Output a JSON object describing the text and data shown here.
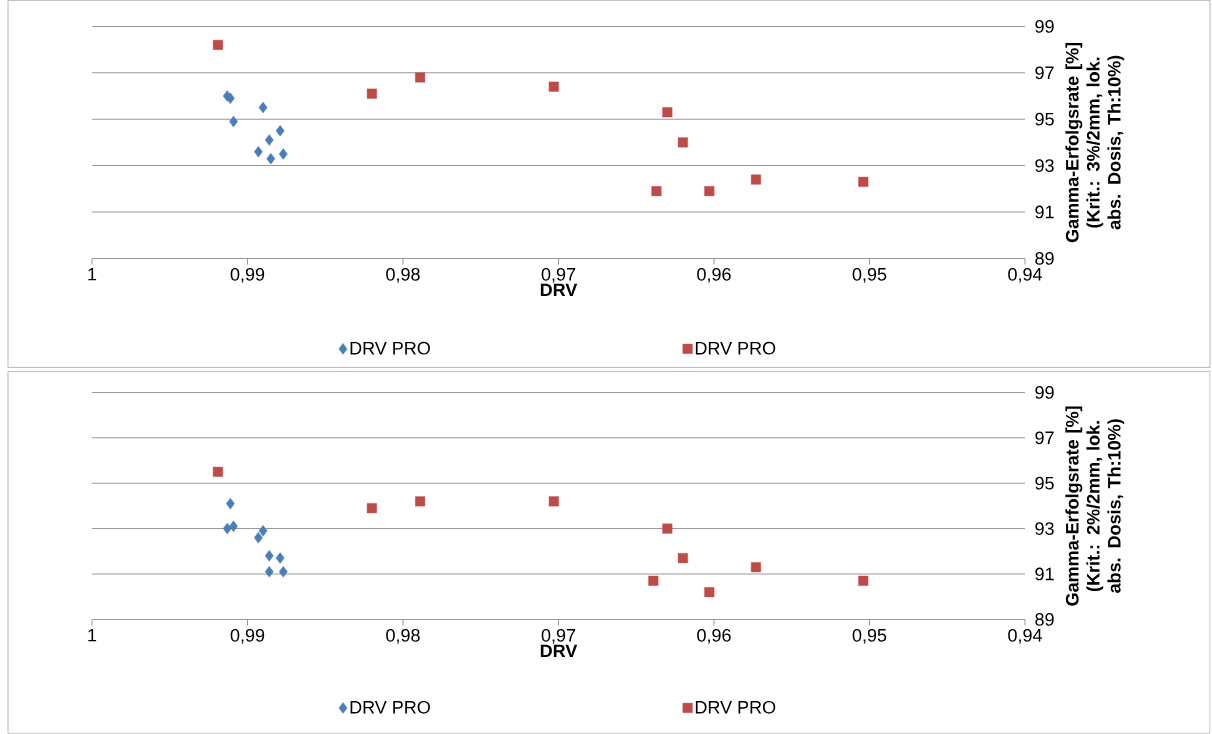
{
  "chart_data": [
    {
      "type": "scatter",
      "xlabel": "DRV",
      "ylabel": "Gamma-Erfolgsrate [%] (Krit.: 3%/2mm, lok. abs. Dosis, Th:10%)",
      "xlim": [
        1,
        0.94
      ],
      "xticks": [
        {
          "value": 1,
          "label": "1"
        },
        {
          "value": 0.99,
          "label": "0,99"
        },
        {
          "value": 0.98,
          "label": "0,98"
        },
        {
          "value": 0.97,
          "label": "0,97"
        },
        {
          "value": 0.96,
          "label": "0,96"
        },
        {
          "value": 0.95,
          "label": "0,95"
        },
        {
          "value": 0.94,
          "label": "0,94"
        }
      ],
      "ylim": [
        89,
        99
      ],
      "yticks": [
        89,
        91,
        93,
        95,
        97,
        99
      ],
      "grid": "y",
      "legend": "bottom",
      "series": [
        {
          "name": "DRV PRO",
          "color": "#4a7ebb",
          "marker": "diamond",
          "x": [
            0.9913,
            0.9911,
            0.9909,
            0.989,
            0.9893,
            0.9886,
            0.9879,
            0.9885,
            0.9877
          ],
          "values": [
            96.0,
            95.9,
            94.9,
            95.5,
            93.6,
            94.1,
            94.5,
            93.3,
            93.5
          ]
        },
        {
          "name": "DRV PRO",
          "color": "#be4b48",
          "marker": "square",
          "x": [
            0.9919,
            0.982,
            0.9789,
            0.9703,
            0.963,
            0.962,
            0.9637,
            0.9603,
            0.9573,
            0.9504
          ],
          "values": [
            98.2,
            96.1,
            96.8,
            96.4,
            95.3,
            94.0,
            91.9,
            91.9,
            92.4,
            92.3
          ]
        }
      ]
    },
    {
      "type": "scatter",
      "xlabel": "DRV",
      "ylabel": "Gamma-Erfolgsrate [%] (Krit.: 2%/2mm, lok. abs. Dosis, Th:10%)",
      "xlim": [
        1,
        0.94
      ],
      "xticks": [
        {
          "value": 1,
          "label": "1"
        },
        {
          "value": 0.99,
          "label": "0,99"
        },
        {
          "value": 0.98,
          "label": "0,98"
        },
        {
          "value": 0.97,
          "label": "0,97"
        },
        {
          "value": 0.96,
          "label": "0,96"
        },
        {
          "value": 0.95,
          "label": "0,95"
        },
        {
          "value": 0.94,
          "label": "0,94"
        }
      ],
      "ylim": [
        89,
        99
      ],
      "yticks": [
        89,
        91,
        93,
        95,
        97,
        99
      ],
      "grid": "y",
      "legend": "bottom",
      "series": [
        {
          "name": "DRV PRO",
          "color": "#4a7ebb",
          "marker": "diamond",
          "x": [
            0.9911,
            0.9913,
            0.9909,
            0.989,
            0.9893,
            0.9886,
            0.9879,
            0.9886,
            0.9877
          ],
          "values": [
            94.1,
            93.0,
            93.1,
            92.9,
            92.6,
            91.8,
            91.7,
            91.1,
            91.1
          ]
        },
        {
          "name": "DRV PRO",
          "color": "#be4b48",
          "marker": "square",
          "x": [
            0.9919,
            0.982,
            0.9789,
            0.9703,
            0.963,
            0.962,
            0.9639,
            0.9603,
            0.9573,
            0.9504
          ],
          "values": [
            95.5,
            93.9,
            94.2,
            94.2,
            93.0,
            91.7,
            90.7,
            90.2,
            91.3,
            90.7
          ]
        }
      ]
    }
  ]
}
